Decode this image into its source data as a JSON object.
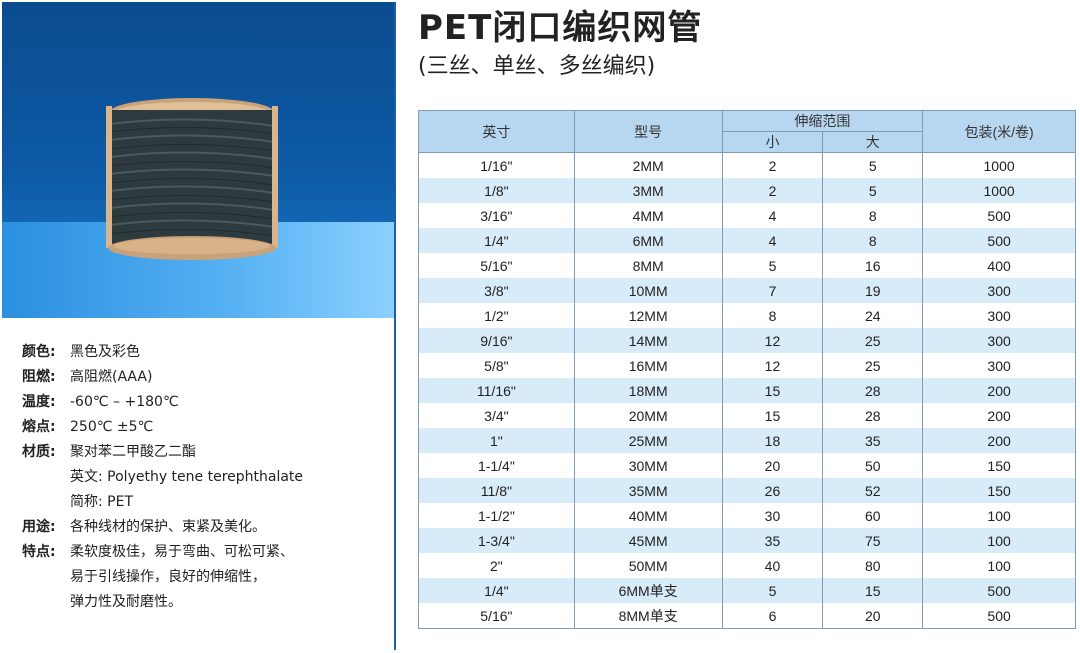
{
  "header": {
    "title": "PET闭口编织网管",
    "subtitle": "(三丝、单丝、多丝编织)"
  },
  "product_image": {
    "description_icon": "braided-sleeve-spool-icon"
  },
  "specs": [
    {
      "key": "颜色:",
      "value": "黑色及彩色"
    },
    {
      "key": "阻燃:",
      "value": "高阻燃(AAA)"
    },
    {
      "key": "温度:",
      "value": "-60℃ – +180℃"
    },
    {
      "key": "熔点:",
      "value": "250℃ ±5℃"
    },
    {
      "key": "材质:",
      "value": "聚对苯二甲酸乙二酯"
    }
  ],
  "material_extra": [
    "英文: Polyethy tene terephthalate",
    "简称: PET"
  ],
  "usage": {
    "key": "用途:",
    "value": "各种线材的保护、束紧及美化。"
  },
  "features": {
    "key": "特点:",
    "lines": [
      "柔软度极佳，易于弯曲、可松可紧、",
      "易于引线操作，良好的伸缩性，",
      "弹力性及耐磨性。"
    ]
  },
  "table": {
    "headers": {
      "size": "英寸",
      "model": "型号",
      "stretch": "伸缩范围",
      "small": "小",
      "large": "大",
      "package": "包装(米/卷)"
    },
    "rows": [
      [
        "1/16\"",
        "2MM",
        "2",
        "5",
        "1000"
      ],
      [
        "1/8\"",
        "3MM",
        "2",
        "5",
        "1000"
      ],
      [
        "3/16\"",
        "4MM",
        "4",
        "8",
        "500"
      ],
      [
        "1/4\"",
        "6MM",
        "4",
        "8",
        "500"
      ],
      [
        "5/16\"",
        "8MM",
        "5",
        "16",
        "400"
      ],
      [
        "3/8\"",
        "10MM",
        "7",
        "19",
        "300"
      ],
      [
        "1/2\"",
        "12MM",
        "8",
        "24",
        "300"
      ],
      [
        "9/16\"",
        "14MM",
        "12",
        "25",
        "300"
      ],
      [
        "5/8\"",
        "16MM",
        "12",
        "25",
        "300"
      ],
      [
        "11/16\"",
        "18MM",
        "15",
        "28",
        "200"
      ],
      [
        "3/4\"",
        "20MM",
        "15",
        "28",
        "200"
      ],
      [
        "1\"",
        "25MM",
        "18",
        "35",
        "200"
      ],
      [
        "1-1/4\"",
        "30MM",
        "20",
        "50",
        "150"
      ],
      [
        "11/8\"",
        "35MM",
        "26",
        "52",
        "150"
      ],
      [
        "1-1/2\"",
        "40MM",
        "30",
        "60",
        "100"
      ],
      [
        "1-3/4\"",
        "45MM",
        "35",
        "75",
        "100"
      ],
      [
        "2\"",
        "50MM",
        "40",
        "80",
        "100"
      ],
      [
        "1/4\"",
        "6MM单支",
        "5",
        "15",
        "500"
      ],
      [
        "5/16\"",
        "8MM单支",
        "6",
        "20",
        "500"
      ]
    ]
  }
}
